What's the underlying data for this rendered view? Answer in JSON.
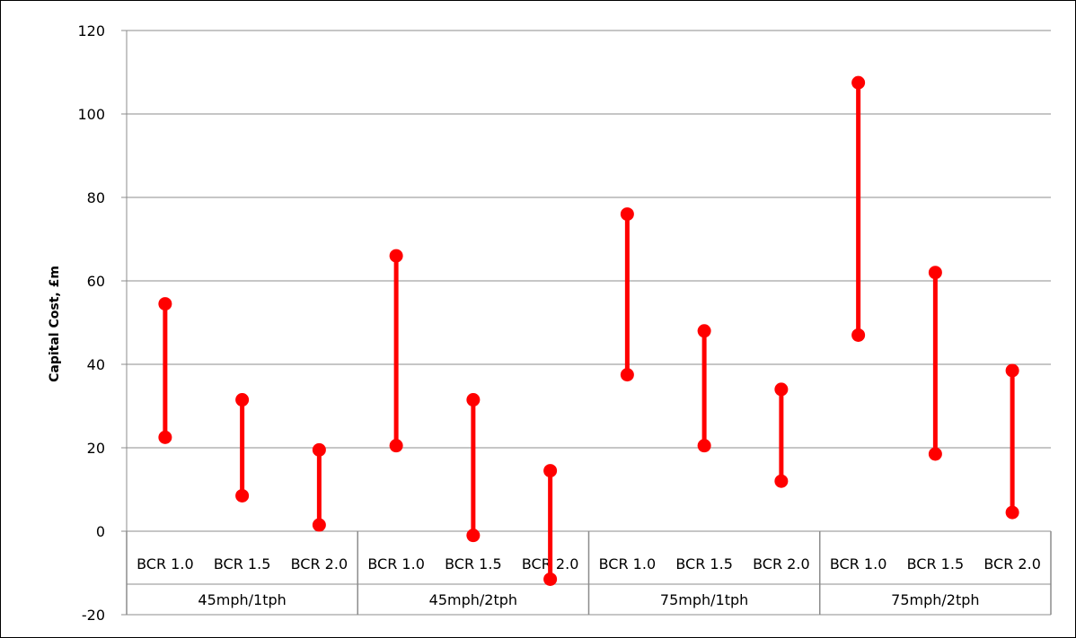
{
  "chart_data": {
    "type": "range",
    "title": "",
    "ylabel": "Capital Cost, £m",
    "xlabel": "",
    "ylim": [
      -20,
      120
    ],
    "yticks": [
      -20,
      0,
      20,
      40,
      60,
      80,
      100,
      120
    ],
    "grid": true,
    "series_color": "#ff0000",
    "groups": [
      {
        "label": "45mph/1tph",
        "items": [
          {
            "label": "BCR 1.0",
            "low": 22.5,
            "high": 54.5
          },
          {
            "label": "BCR 1.5",
            "low": 8.5,
            "high": 31.5
          },
          {
            "label": "BCR 2.0",
            "low": 1.5,
            "high": 19.5
          }
        ]
      },
      {
        "label": "45mph/2tph",
        "items": [
          {
            "label": "BCR 1.0",
            "low": 20.5,
            "high": 66
          },
          {
            "label": "BCR 1.5",
            "low": -1,
            "high": 31.5
          },
          {
            "label": "BCR 2.0",
            "low": -11.5,
            "high": 14.5
          }
        ]
      },
      {
        "label": "75mph/1tph",
        "items": [
          {
            "label": "BCR 1.0",
            "low": 37.5,
            "high": 76
          },
          {
            "label": "BCR 1.5",
            "low": 20.5,
            "high": 48
          },
          {
            "label": "BCR 2.0",
            "low": 12,
            "high": 34
          }
        ]
      },
      {
        "label": "75mph/2tph",
        "items": [
          {
            "label": "BCR 1.0",
            "low": 47,
            "high": 107.5
          },
          {
            "label": "BCR 1.5",
            "low": 18.5,
            "high": 62
          },
          {
            "label": "BCR 2.0",
            "low": 4.5,
            "high": 38.5
          }
        ]
      }
    ]
  }
}
